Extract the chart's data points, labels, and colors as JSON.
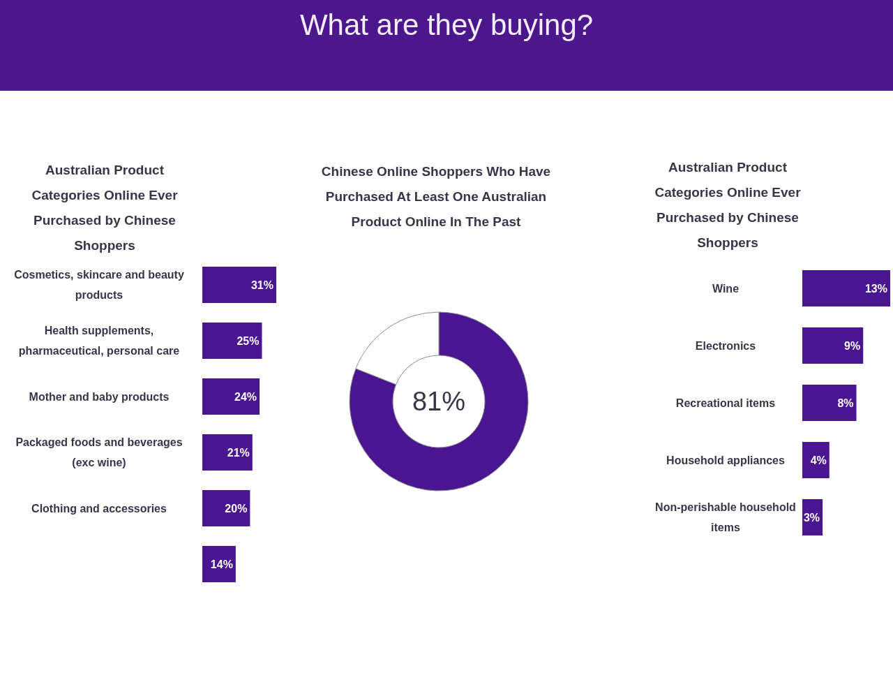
{
  "chart_data": [
    {
      "type": "other",
      "title": "What are they buying?"
    },
    {
      "type": "bar",
      "orientation": "horizontal",
      "title": "Australian Product Categories Online Ever Purchased by Chinese Shoppers",
      "categories": [
        "Cosmetics, skincare and beauty products",
        "Health supplements, pharmaceutical, personal care",
        "Mother and baby products",
        "Packaged foods and beverages (exc wine)",
        "Clothing and accessories",
        null
      ],
      "values": [
        31,
        25,
        24,
        21,
        20,
        14
      ],
      "value_labels": [
        "31%",
        "25%",
        "24%",
        "21%",
        "20%",
        "14%"
      ],
      "color": "#4a1590",
      "tick_labels": "y"
    },
    {
      "type": "donut",
      "title": "Chinese Online Shoppers Who Have Purchased At Least One Australian Product Online In The Past",
      "categories": [
        null,
        null
      ],
      "values": [
        81,
        19
      ],
      "colors": [
        "#4a1590",
        "#ffffff"
      ],
      "value_labels": [
        "81%",
        null
      ]
    },
    {
      "type": "bar",
      "orientation": "horizontal",
      "title": "Australian Product Categories Online Ever Purchased by Chinese Shoppers",
      "categories": [
        "Wine",
        "Electronics",
        "Recreational items",
        "Household appliances",
        "Non-perishable household items"
      ],
      "values": [
        13,
        9,
        8,
        4,
        3
      ],
      "value_labels": [
        "13%",
        "9%",
        "8%",
        "4%",
        "3%"
      ],
      "color": "#4a1590",
      "tick_labels": "y"
    }
  ]
}
